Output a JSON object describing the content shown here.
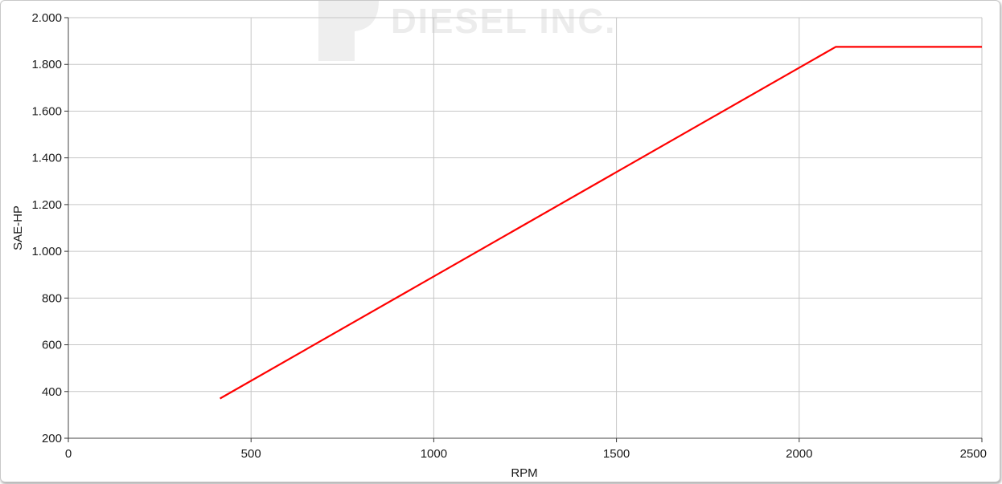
{
  "chart_data": {
    "type": "line",
    "title": "",
    "xlabel": "RPM",
    "ylabel": "SAE-HP",
    "xlim": [
      0,
      2500
    ],
    "ylim": [
      200,
      2000
    ],
    "x_ticks": [
      {
        "value": 0,
        "label": "0"
      },
      {
        "value": 500,
        "label": "500"
      },
      {
        "value": 1000,
        "label": "1000"
      },
      {
        "value": 1500,
        "label": "1500"
      },
      {
        "value": 2000,
        "label": "2000"
      },
      {
        "value": 2500,
        "label": "2500"
      }
    ],
    "y_ticks": [
      {
        "value": 200,
        "label": "200"
      },
      {
        "value": 400,
        "label": "400"
      },
      {
        "value": 600,
        "label": "600"
      },
      {
        "value": 800,
        "label": "800"
      },
      {
        "value": 1000,
        "label": "1.000"
      },
      {
        "value": 1200,
        "label": "1.200"
      },
      {
        "value": 1400,
        "label": "1.400"
      },
      {
        "value": 1600,
        "label": "1.600"
      },
      {
        "value": 1800,
        "label": "1.800"
      },
      {
        "value": 2000,
        "label": "2.000"
      }
    ],
    "grid": true,
    "series": [
      {
        "color": "#ff0000",
        "x": [
          415,
          2100,
          2500
        ],
        "y": [
          370,
          1875,
          1875
        ]
      }
    ]
  },
  "watermark": {
    "text": "DIESEL INC.",
    "color": "#ececec"
  }
}
